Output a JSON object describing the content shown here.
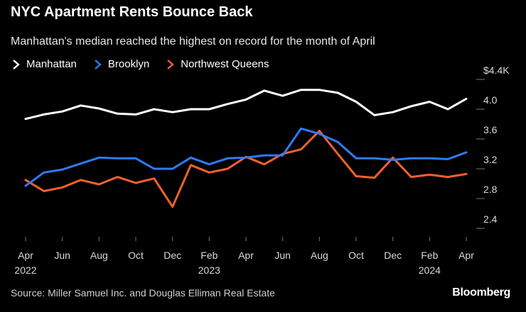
{
  "chart_data": {
    "type": "line",
    "title": "NYC Apartment Rents Bounce Back",
    "subtitle": "Manhattan's median reached the highest on record for the month of April",
    "source": "Source: Miller Samuel Inc. and Douglas Elliman Real Estate",
    "brand": "Bloomberg",
    "ylabel_unit": "$4.4K",
    "ylim": [
      2.4,
      4.4
    ],
    "yticks": [
      {
        "value": 4.4,
        "label": "$4.4K"
      },
      {
        "value": 4.0,
        "label": "4.0"
      },
      {
        "value": 3.6,
        "label": "3.6"
      },
      {
        "value": 3.2,
        "label": "3.2"
      },
      {
        "value": 2.8,
        "label": "2.8"
      },
      {
        "value": 2.4,
        "label": "2.4"
      }
    ],
    "x": [
      "2022-04",
      "2022-05",
      "2022-06",
      "2022-07",
      "2022-08",
      "2022-09",
      "2022-10",
      "2022-11",
      "2022-12",
      "2023-01",
      "2023-02",
      "2023-03",
      "2023-04",
      "2023-05",
      "2023-06",
      "2023-07",
      "2023-08",
      "2023-09",
      "2023-10",
      "2023-11",
      "2023-12",
      "2024-01",
      "2024-02",
      "2024-03",
      "2024-04"
    ],
    "xticks": [
      {
        "index": 0,
        "label": "Apr",
        "year": "2022"
      },
      {
        "index": 2,
        "label": "Jun",
        "year": ""
      },
      {
        "index": 4,
        "label": "Aug",
        "year": ""
      },
      {
        "index": 6,
        "label": "Oct",
        "year": ""
      },
      {
        "index": 8,
        "label": "Dec",
        "year": ""
      },
      {
        "index": 10,
        "label": "Feb",
        "year": "2023"
      },
      {
        "index": 12,
        "label": "Apr",
        "year": ""
      },
      {
        "index": 14,
        "label": "Jun",
        "year": ""
      },
      {
        "index": 16,
        "label": "Aug",
        "year": ""
      },
      {
        "index": 18,
        "label": "Oct",
        "year": ""
      },
      {
        "index": 20,
        "label": "Dec",
        "year": ""
      },
      {
        "index": 22,
        "label": "Feb",
        "year": "2024"
      },
      {
        "index": 24,
        "label": "Apr",
        "year": ""
      }
    ],
    "series": [
      {
        "name": "Manhattan",
        "color": "#ffffff",
        "values": [
          3.87,
          3.93,
          3.97,
          4.05,
          4.01,
          3.94,
          3.93,
          4.0,
          3.96,
          4.0,
          4.0,
          4.07,
          4.13,
          4.25,
          4.18,
          4.26,
          4.26,
          4.22,
          4.1,
          3.92,
          3.96,
          4.04,
          4.1,
          4.0,
          4.14
        ]
      },
      {
        "name": "Brooklyn",
        "color": "#2e7bf6",
        "values": [
          2.97,
          3.15,
          3.19,
          3.27,
          3.35,
          3.34,
          3.34,
          3.2,
          3.2,
          3.35,
          3.26,
          3.34,
          3.35,
          3.38,
          3.38,
          3.74,
          3.67,
          3.56,
          3.34,
          3.34,
          3.32,
          3.34,
          3.34,
          3.33,
          3.42
        ]
      },
      {
        "name": "Northwest Queens",
        "color": "#f2612d",
        "values": [
          3.05,
          2.9,
          2.95,
          3.05,
          2.99,
          3.09,
          3.01,
          3.07,
          2.69,
          3.25,
          3.15,
          3.2,
          3.36,
          3.26,
          3.4,
          3.46,
          3.71,
          3.4,
          3.1,
          3.08,
          3.35,
          3.09,
          3.12,
          3.09,
          3.13
        ]
      }
    ]
  }
}
